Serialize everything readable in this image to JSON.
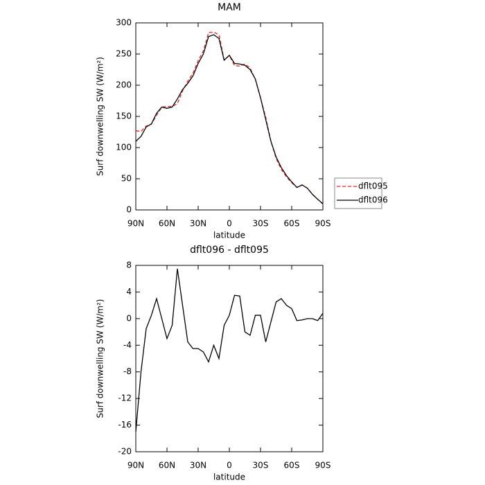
{
  "chart_data": [
    {
      "type": "line",
      "title": "MAM",
      "xlabel": "latitude",
      "ylabel": "Surf downwelling SW (W/m²)",
      "x": [
        90,
        85,
        80,
        75,
        70,
        65,
        60,
        55,
        50,
        45,
        40,
        35,
        30,
        25,
        20,
        15,
        10,
        5,
        0,
        -5,
        -10,
        -15,
        -20,
        -25,
        -30,
        -35,
        -40,
        -45,
        -50,
        -55,
        -60,
        -65,
        -70,
        -75,
        -80,
        -85,
        -90
      ],
      "xlim": [
        90,
        -90
      ],
      "xticks": [
        {
          "value": 90,
          "label": "90N"
        },
        {
          "value": 60,
          "label": "60N"
        },
        {
          "value": 30,
          "label": "30N"
        },
        0,
        {
          "value": -30,
          "label": "30S"
        },
        {
          "value": -60,
          "label": "60S"
        },
        {
          "value": -90,
          "label": "90S"
        }
      ],
      "ylim": [
        0,
        300
      ],
      "yticks": [
        0,
        50,
        100,
        150,
        200,
        250,
        300
      ],
      "legend": "right",
      "series": [
        {
          "name": "dflt095",
          "color": "#e8231f",
          "linestyle": "dashed",
          "values": [
            127,
            126,
            134.5,
            137.5,
            152,
            165,
            166,
            166,
            170.5,
            191,
            206.5,
            219.5,
            239.5,
            255,
            284.5,
            285,
            281,
            241,
            247.5,
            231.5,
            230.6,
            234,
            227.5,
            209.5,
            179.5,
            148.5,
            110.5,
            82.5,
            65,
            53,
            43.5,
            36.3,
            40.2,
            35,
            25,
            17.3,
            9.2
          ]
        },
        {
          "name": "dflt096",
          "color": "#000000",
          "linestyle": "solid",
          "values": [
            110,
            118,
            133,
            138,
            155,
            165,
            163,
            165,
            178,
            193,
            203,
            215,
            235,
            250,
            278,
            281,
            275,
            240,
            248,
            235,
            234,
            232,
            225,
            210,
            180,
            145,
            110,
            85,
            68,
            55,
            45,
            36,
            40,
            35,
            25,
            17,
            10
          ]
        }
      ]
    },
    {
      "type": "line",
      "title": "dflt096 - dflt095",
      "xlabel": "latitude",
      "ylabel": "Surf downwelling SW (W/m²)",
      "x": [
        90,
        85,
        80,
        75,
        70,
        65,
        60,
        55,
        50,
        45,
        40,
        35,
        30,
        25,
        20,
        15,
        10,
        5,
        0,
        -5,
        -10,
        -15,
        -20,
        -25,
        -30,
        -35,
        -40,
        -45,
        -50,
        -55,
        -60,
        -65,
        -70,
        -75,
        -80,
        -85,
        -90
      ],
      "xlim": [
        90,
        -90
      ],
      "xticks": [
        {
          "value": 90,
          "label": "90N"
        },
        {
          "value": 60,
          "label": "60N"
        },
        {
          "value": 30,
          "label": "30N"
        },
        0,
        {
          "value": -30,
          "label": "30S"
        },
        {
          "value": -60,
          "label": "60S"
        },
        {
          "value": -90,
          "label": "90S"
        }
      ],
      "ylim": [
        -20,
        8
      ],
      "yticks": [
        -20,
        -16,
        -12,
        -8,
        -4,
        0,
        4,
        8
      ],
      "color": "#000000",
      "values": [
        -17,
        -8,
        -1.5,
        0.5,
        3,
        0,
        -3,
        -1,
        7.5,
        2,
        -3.5,
        -4.5,
        -4.5,
        -5,
        -6.5,
        -4,
        -6,
        -1,
        0.5,
        3.5,
        3.4,
        -2,
        -2.5,
        0.5,
        0.5,
        -3.5,
        -0.5,
        2.5,
        3,
        2,
        1.5,
        -0.3,
        -0.2,
        0,
        0,
        -0.3,
        0.8
      ]
    }
  ]
}
